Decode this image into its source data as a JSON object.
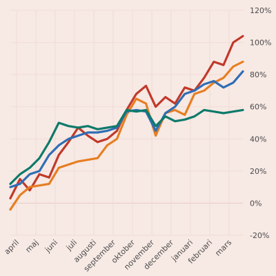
{
  "chart_data": {
    "type": "line",
    "title": "",
    "xlabel": "",
    "ylabel": "",
    "ylim": [
      -20,
      120
    ],
    "yticks": [
      -20,
      0,
      20,
      40,
      60,
      80,
      100,
      120
    ],
    "ytick_suffix": "%",
    "ytick_labels": [
      "-20%",
      "0%",
      "20%",
      "40%",
      "60%",
      "80%",
      "100%",
      "120%"
    ],
    "grid": true,
    "legend": "none",
    "categories": [
      "april",
      "maj",
      "juni",
      "juli",
      "augusti",
      "september",
      "oktober",
      "november",
      "december",
      "januari",
      "februari",
      "mars"
    ],
    "x": [
      0,
      1,
      2,
      3,
      4,
      5,
      6,
      7,
      8,
      9,
      10,
      11,
      12,
      13,
      14,
      15,
      16,
      17,
      18,
      19,
      20,
      21,
      22,
      23,
      24
    ],
    "series": [
      {
        "color": "#c0392b",
        "values": [
          3,
          15,
          8,
          18,
          16,
          30,
          38,
          47,
          42,
          38,
          40,
          45,
          58,
          68,
          73,
          60,
          66,
          62,
          72,
          70,
          78,
          88,
          86,
          100,
          104
        ]
      },
      {
        "color": "#e67e22",
        "values": [
          -4,
          5,
          10,
          11,
          12,
          22,
          24,
          26,
          27,
          28,
          36,
          40,
          55,
          65,
          62,
          42,
          56,
          58,
          55,
          68,
          70,
          75,
          78,
          85,
          88
        ]
      },
      {
        "color": "#2e6db4",
        "values": [
          10,
          12,
          18,
          20,
          30,
          36,
          40,
          42,
          44,
          44,
          45,
          47,
          57,
          58,
          57,
          45,
          56,
          60,
          68,
          70,
          74,
          76,
          72,
          75,
          82
        ]
      },
      {
        "color": "#0e7a6a",
        "values": [
          12,
          18,
          22,
          28,
          38,
          50,
          48,
          47,
          48,
          46,
          47,
          48,
          58,
          57,
          58,
          48,
          54,
          51,
          52,
          54,
          58,
          57,
          56,
          57,
          58
        ]
      }
    ]
  }
}
